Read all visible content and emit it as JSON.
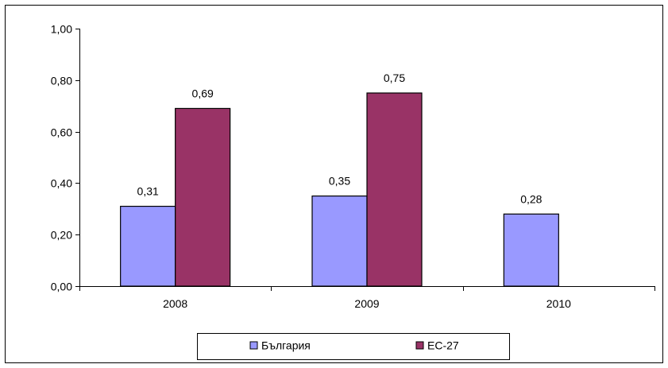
{
  "chart_data": {
    "type": "bar",
    "categories": [
      "2008",
      "2009",
      "2010"
    ],
    "series": [
      {
        "name": "България",
        "color": "#9999FF",
        "values": [
          0.31,
          0.35,
          0.28
        ]
      },
      {
        "name": "ЕС-27",
        "color": "#993366",
        "values": [
          0.69,
          0.75,
          null
        ]
      }
    ],
    "data_labels": [
      [
        "0,31",
        "0,35",
        "0,28"
      ],
      [
        "0,69",
        "0,75",
        ""
      ]
    ],
    "y_ticks": [
      0,
      0.2,
      0.4,
      0.6,
      0.8,
      1.0
    ],
    "y_tick_labels": [
      "0,00",
      "0,20",
      "0,40",
      "0,60",
      "0,80",
      "1,00"
    ],
    "ylim": [
      0,
      1.0
    ],
    "title": "",
    "xlabel": "",
    "ylabel": "",
    "grid": false,
    "legend_position": "bottom"
  }
}
